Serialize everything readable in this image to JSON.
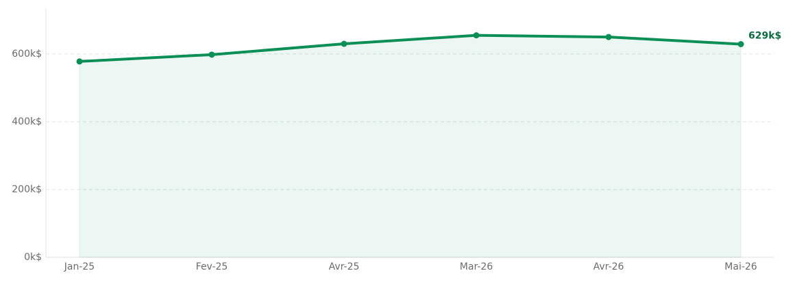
{
  "chart_data": {
    "type": "line",
    "categories": [
      "Jan-25",
      "Fev-25",
      "Avr-25",
      "Mar-26",
      "Avr-26",
      "Mai-26"
    ],
    "series": [
      {
        "color": "#0b8f57",
        "values": [
          578,
          598,
          630,
          655,
          650,
          629
        ],
        "value_labels": [
          null,
          null,
          null,
          null,
          null,
          "629k$"
        ]
      }
    ],
    "ylim": [
      0,
      733
    ],
    "yticks": [
      {
        "value": 0,
        "label": "0k$"
      },
      {
        "value": 200,
        "label": "200k$"
      },
      {
        "value": 400,
        "label": "400k$"
      },
      {
        "value": 600,
        "label": "600k$"
      }
    ],
    "grid": true,
    "area": true
  }
}
